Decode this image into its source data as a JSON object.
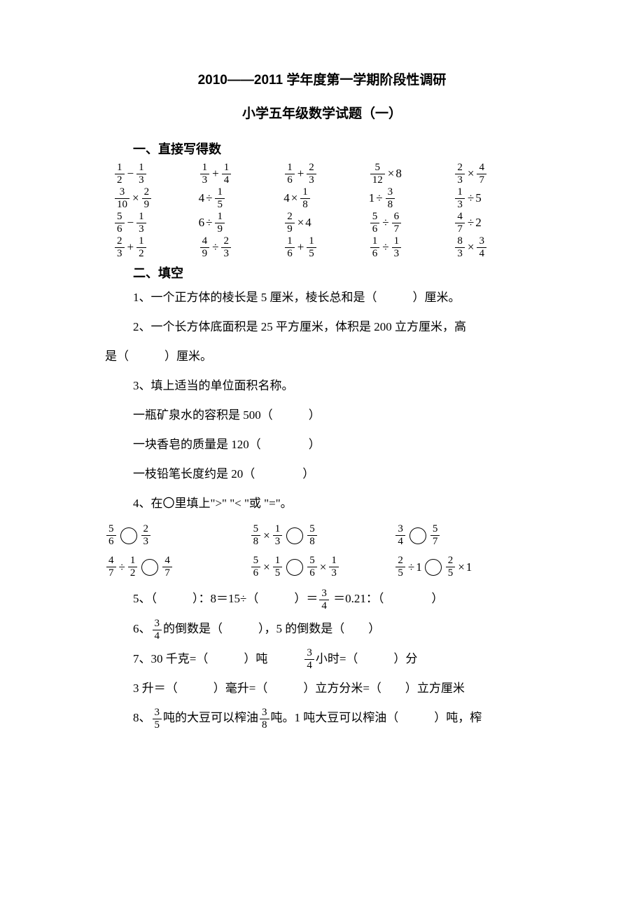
{
  "title_main": "2010——2011 学年度第一学期阶段性调研",
  "title_sub": "小学五年级数学试题（一）",
  "section1_header": "一、直接写得数",
  "calc": [
    [
      {
        "a": {
          "n": "1",
          "d": "2"
        },
        "op": "−",
        "b": {
          "n": "1",
          "d": "3"
        }
      },
      {
        "a": {
          "n": "1",
          "d": "3"
        },
        "op": "+",
        "b": {
          "n": "1",
          "d": "4"
        }
      },
      {
        "a": {
          "n": "1",
          "d": "6"
        },
        "op": "+",
        "b": {
          "n": "2",
          "d": "3"
        }
      },
      {
        "a": {
          "n": "5",
          "d": "12"
        },
        "op": "×",
        "b_int": "8"
      },
      {
        "a": {
          "n": "2",
          "d": "3"
        },
        "op": "×",
        "b": {
          "n": "4",
          "d": "7"
        }
      }
    ],
    [
      {
        "a": {
          "n": "3",
          "d": "10"
        },
        "op": "×",
        "b": {
          "n": "2",
          "d": "9"
        }
      },
      {
        "a_int": "4",
        "op": "÷",
        "b": {
          "n": "1",
          "d": "5"
        }
      },
      {
        "a_int": "4",
        "op": "×",
        "b": {
          "n": "1",
          "d": "8"
        }
      },
      {
        "a_int": "1",
        "op": "÷",
        "b": {
          "n": "3",
          "d": "8"
        }
      },
      {
        "a": {
          "n": "1",
          "d": "3"
        },
        "op": "÷",
        "b_int": "5"
      }
    ],
    [
      {
        "a": {
          "n": "5",
          "d": "6"
        },
        "op": "−",
        "b": {
          "n": "1",
          "d": "3"
        }
      },
      {
        "a_int": "6",
        "op": "÷",
        "b": {
          "n": "1",
          "d": "9"
        }
      },
      {
        "a": {
          "n": "2",
          "d": "9"
        },
        "op": "×",
        "b_int": "4"
      },
      {
        "a": {
          "n": "5",
          "d": "6"
        },
        "op": "÷",
        "b": {
          "n": "6",
          "d": "7"
        }
      },
      {
        "a": {
          "n": "4",
          "d": "7"
        },
        "op": "÷",
        "b_int": "2"
      }
    ],
    [
      {
        "a": {
          "n": "2",
          "d": "3"
        },
        "op": "+",
        "b": {
          "n": "1",
          "d": "2"
        }
      },
      {
        "a": {
          "n": "4",
          "d": "9"
        },
        "op": "÷",
        "b": {
          "n": "2",
          "d": "3"
        }
      },
      {
        "a": {
          "n": "1",
          "d": "6"
        },
        "op": "+",
        "b": {
          "n": "1",
          "d": "5"
        }
      },
      {
        "a": {
          "n": "1",
          "d": "6"
        },
        "op": "÷",
        "b": {
          "n": "1",
          "d": "3"
        }
      },
      {
        "a": {
          "n": "8",
          "d": "3"
        },
        "op": "×",
        "b": {
          "n": "3",
          "d": "4"
        }
      }
    ]
  ],
  "section2_header": "二、填空",
  "q1": "1、一个正方体的棱长是 5 厘米，棱长总和是（　　　）厘米。",
  "q2a": "2、一个长方体底面积是 25 平方厘米，体积是 200 立方厘米，高",
  "q2b": "是（　　　）厘米。",
  "q3": "3、填上适当的单位面积名称。",
  "q3a": "一瓶矿泉水的容积是 500（　　　）",
  "q3b": "一块香皂的质量是 120（　　　　）",
  "q3c": "一枝铅笔长度约是 20（　　　　）",
  "q4": "4、在〇里填上\">\" \"< \"或 \"=\"。",
  "cmpA": [
    {
      "type": "ff",
      "a": {
        "n": "5",
        "d": "6"
      },
      "b": {
        "n": "2",
        "d": "3"
      }
    },
    {
      "type": "expr_f",
      "a": {
        "n": "5",
        "d": "8"
      },
      "op": "×",
      "b": {
        "n": "1",
        "d": "3"
      },
      "right": {
        "n": "5",
        "d": "8"
      }
    },
    {
      "type": "ff",
      "a": {
        "n": "3",
        "d": "4"
      },
      "b": {
        "n": "5",
        "d": "7"
      }
    }
  ],
  "cmpB": [
    {
      "type": "expr_f",
      "a": {
        "n": "4",
        "d": "7"
      },
      "op": "÷",
      "b": {
        "n": "1",
        "d": "2"
      },
      "right": {
        "n": "4",
        "d": "7"
      }
    },
    {
      "type": "expr_expr",
      "la": {
        "n": "5",
        "d": "6"
      },
      "lop": "×",
      "lb": {
        "n": "1",
        "d": "5"
      },
      "ra": {
        "n": "5",
        "d": "6"
      },
      "rop": "×",
      "rb": {
        "n": "1",
        "d": "3"
      }
    },
    {
      "type": "expr_expr_int",
      "la": {
        "n": "2",
        "d": "5"
      },
      "lop": "÷",
      "lb": "1",
      "ra": {
        "n": "2",
        "d": "5"
      },
      "rop": "×",
      "rb": "1"
    }
  ],
  "q5_pre": "5、（　　　）：8＝15÷（　　　）＝",
  "q5_frac": {
    "n": "3",
    "d": "4"
  },
  "q5_post": " ＝0.21：（　　　　）",
  "q6_pre": "6、",
  "q6_frac": {
    "n": "3",
    "d": "4"
  },
  "q6_post": "的倒数是（　　　），5 的倒数是（　　）",
  "q7_pre": "7、30 千克=（　　　）吨　　　",
  "q7_frac": {
    "n": "3",
    "d": "4"
  },
  "q7_post": "小时=（　　　）分",
  "q7b": "3 升＝（　　　）毫升=（　　　）立方分米=（　　）立方厘米",
  "q8_pre": "8、",
  "q8_f1": {
    "n": "3",
    "d": "5"
  },
  "q8_mid": "吨的大豆可以榨油",
  "q8_f2": {
    "n": "3",
    "d": "8"
  },
  "q8_post": "吨。1 吨大豆可以榨油（　　　）吨，榨"
}
